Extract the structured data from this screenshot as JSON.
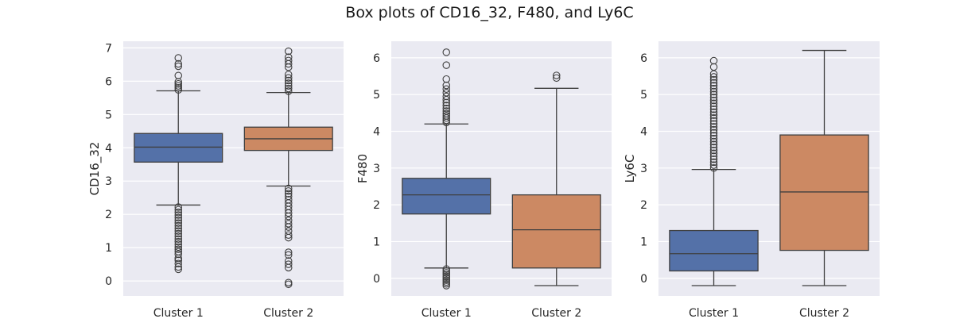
{
  "figure": {
    "title": "Box plots of CD16_32, F480, and Ly6C"
  },
  "colors": {
    "background": "#eaeaf2",
    "grid": "#ffffff",
    "cluster1": "#5471a8",
    "cluster2": "#cc8963",
    "line": "#3f3f3f",
    "text": "#262626"
  },
  "chart_data": [
    {
      "type": "box",
      "ylabel": "CD16_32",
      "categories": [
        "Cluster 1",
        "Cluster 2"
      ],
      "yticks": [
        0,
        1,
        2,
        3,
        4,
        5,
        6,
        7
      ],
      "ylim": [
        -0.45,
        7.2
      ],
      "boxes": [
        {
          "name": "Cluster 1",
          "whisker_low": 2.28,
          "q1": 3.57,
          "median": 4.02,
          "q3": 4.43,
          "whisker_high": 5.71,
          "outliers": [
            0.35,
            0.42,
            0.52,
            0.62,
            0.68,
            0.8,
            0.88,
            0.95,
            1.02,
            1.1,
            1.18,
            1.26,
            1.34,
            1.42,
            1.5,
            1.58,
            1.66,
            1.74,
            1.82,
            1.9,
            1.98,
            2.06,
            2.14,
            2.22,
            5.74,
            5.8,
            5.86,
            5.92,
            5.98,
            6.17,
            6.45,
            6.52,
            6.7
          ]
        },
        {
          "name": "Cluster 2",
          "whisker_low": 2.85,
          "q1": 3.92,
          "median": 4.27,
          "q3": 4.62,
          "whisker_high": 5.66,
          "outliers": [
            -0.1,
            -0.05,
            0.4,
            0.5,
            0.6,
            0.78,
            0.86,
            1.3,
            1.38,
            1.5,
            1.62,
            1.72,
            1.82,
            1.94,
            2.04,
            2.14,
            2.24,
            2.34,
            2.44,
            2.54,
            2.62,
            2.7,
            2.78,
            5.7,
            5.78,
            5.86,
            5.94,
            6.02,
            6.1,
            6.2,
            6.42,
            6.52,
            6.62,
            6.72,
            6.9
          ]
        }
      ]
    },
    {
      "type": "box",
      "ylabel": "F480",
      "categories": [
        "Cluster 1",
        "Cluster 2"
      ],
      "yticks": [
        0,
        1,
        2,
        3,
        4,
        5,
        6
      ],
      "ylim": [
        -0.48,
        6.45
      ],
      "boxes": [
        {
          "name": "Cluster 1",
          "whisker_low": 0.28,
          "q1": 1.75,
          "median": 2.27,
          "q3": 2.72,
          "whisker_high": 4.2,
          "outliers": [
            -0.2,
            -0.15,
            -0.1,
            -0.05,
            0.0,
            0.05,
            0.1,
            0.15,
            0.2,
            0.25,
            4.24,
            4.3,
            4.36,
            4.42,
            4.48,
            4.55,
            4.62,
            4.7,
            4.78,
            4.86,
            4.95,
            5.05,
            5.15,
            5.25,
            5.42,
            5.8,
            6.15
          ]
        },
        {
          "name": "Cluster 2",
          "whisker_low": -0.2,
          "q1": 0.28,
          "median": 1.32,
          "q3": 2.27,
          "whisker_high": 5.17,
          "outliers": [
            5.45,
            5.52
          ]
        }
      ]
    },
    {
      "type": "box",
      "ylabel": "Ly6C",
      "categories": [
        "Cluster 1",
        "Cluster 2"
      ],
      "yticks": [
        0,
        1,
        2,
        3,
        4,
        5,
        6
      ],
      "ylim": [
        -0.48,
        6.45
      ],
      "boxes": [
        {
          "name": "Cluster 1",
          "whisker_low": -0.2,
          "q1": 0.2,
          "median": 0.67,
          "q3": 1.3,
          "whisker_high": 2.96,
          "outliers": [
            3.0,
            3.08,
            3.16,
            3.24,
            3.32,
            3.4,
            3.48,
            3.56,
            3.64,
            3.72,
            3.8,
            3.88,
            3.96,
            4.04,
            4.12,
            4.2,
            4.28,
            4.36,
            4.44,
            4.52,
            4.6,
            4.68,
            4.76,
            4.84,
            4.92,
            5.0,
            5.08,
            5.16,
            5.24,
            5.32,
            5.4,
            5.48,
            5.56,
            5.75,
            5.92
          ]
        },
        {
          "name": "Cluster 2",
          "whisker_low": -0.2,
          "q1": 0.76,
          "median": 2.35,
          "q3": 3.9,
          "whisker_high": 6.2,
          "outliers": []
        }
      ]
    }
  ]
}
